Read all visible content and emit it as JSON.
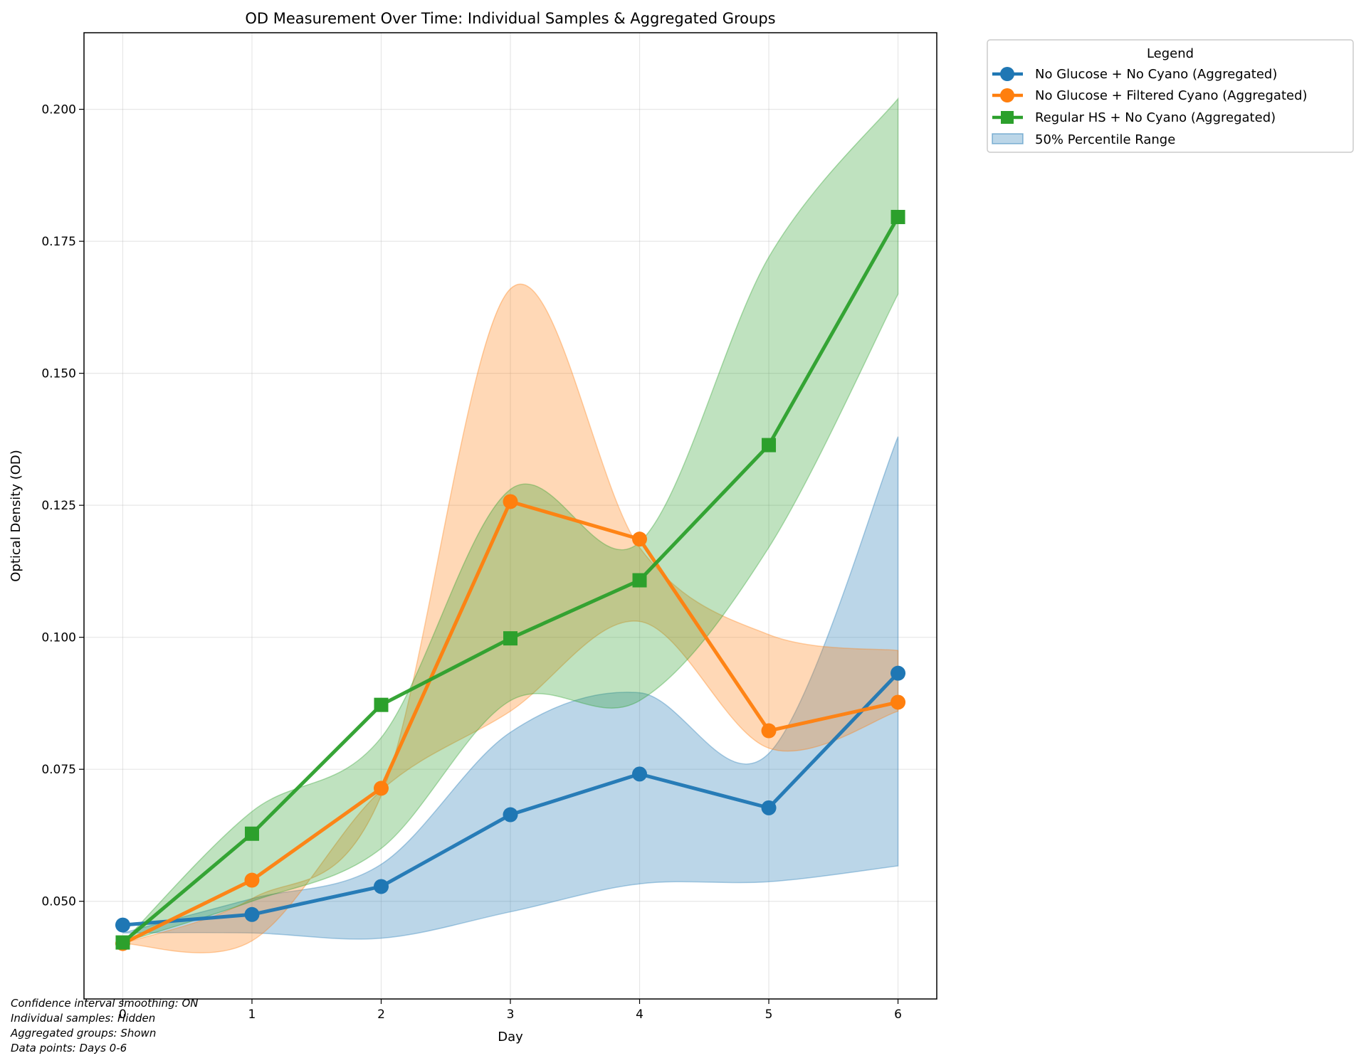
{
  "chart_data": {
    "type": "line",
    "title": "OD Measurement Over Time: Individual Samples & Aggregated Groups",
    "xlabel": "Day",
    "ylabel": "Optical Density (OD)",
    "x": [
      0,
      1,
      2,
      3,
      4,
      5,
      6
    ],
    "xlim": [
      -0.3,
      6.3
    ],
    "ylim": [
      0.0315,
      0.2145
    ],
    "xticks": [
      "0",
      "1",
      "2",
      "3",
      "4",
      "5",
      "6"
    ],
    "yticks": [
      "0.050",
      "0.075",
      "0.100",
      "0.125",
      "0.150",
      "0.175",
      "0.200"
    ],
    "grid": true,
    "legend": {
      "title": "Legend",
      "placement": "outside-top-right",
      "entries": [
        "No Glucose + No Cyano (Aggregated)",
        "No Glucose + Filtered Cyano (Aggregated)",
        "Regular HS + No Cyano (Aggregated)",
        "50% Percentile Range"
      ]
    },
    "series": [
      {
        "name": "No Glucose + No Cyano (Aggregated)",
        "color": "#1f77b4",
        "marker": "circle",
        "values": [
          0.0455,
          0.0475,
          0.0528,
          0.0664,
          0.0741,
          0.0677,
          0.0932
        ],
        "band_lower": [
          0.044,
          0.044,
          0.043,
          0.048,
          0.0533,
          0.0537,
          0.0567
        ],
        "band_upper": [
          0.044,
          0.0505,
          0.057,
          0.082,
          0.0895,
          0.078,
          0.138
        ]
      },
      {
        "name": "No Glucose + Filtered Cyano (Aggregated)",
        "color": "#ff7f0e",
        "marker": "circle",
        "values": [
          0.042,
          0.054,
          0.0714,
          0.1257,
          0.1186,
          0.0823,
          0.0877
        ],
        "band_lower": [
          0.042,
          0.0425,
          0.071,
          0.086,
          0.103,
          0.079,
          0.086
        ],
        "band_upper": [
          0.042,
          0.0505,
          0.07,
          0.166,
          0.117,
          0.1005,
          0.0975
        ]
      },
      {
        "name": "Regular HS + No Cyano (Aggregated)",
        "color": "#2ca02c",
        "marker": "square",
        "values": [
          0.0422,
          0.0628,
          0.0872,
          0.0998,
          0.1108,
          0.1364,
          0.1796
        ],
        "band_lower": [
          0.0422,
          0.05,
          0.06,
          0.088,
          0.088,
          0.117,
          0.165
        ],
        "band_upper": [
          0.0422,
          0.067,
          0.081,
          0.128,
          0.118,
          0.172,
          0.202
        ]
      }
    ]
  },
  "notes": {
    "smoothing": "Confidence interval smoothing: ON",
    "individual": "Individual samples: Hidden",
    "aggregated": "Aggregated groups: Shown",
    "datapoints": "Data points: Days 0-6"
  }
}
